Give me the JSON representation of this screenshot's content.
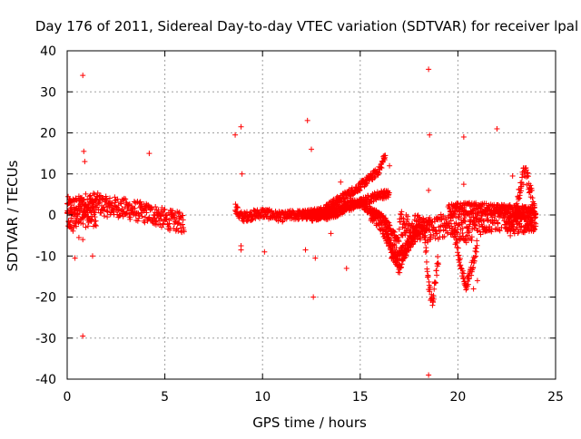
{
  "chart_data": {
    "type": "scatter",
    "title": "Day 176 of 2011, Sidereal Day-to-day VTEC variation (SDTVAR) for receiver lpal",
    "xlabel": "GPS time / hours",
    "ylabel": "SDTVAR / TECUs",
    "xlim": [
      0,
      25
    ],
    "ylim": [
      -40,
      40
    ],
    "xticks": [
      0,
      5,
      10,
      15,
      20,
      25
    ],
    "yticks": [
      -40,
      -30,
      -20,
      -10,
      0,
      10,
      20,
      30,
      40
    ],
    "grid": true,
    "marker": "+",
    "color": "#ff0000",
    "series": [
      {
        "name": "lpal",
        "dense_tracks": [
          {
            "x": [
              0.0,
              0.5,
              1.0,
              1.5,
              2.0,
              2.5,
              3.0,
              3.5,
              4.0,
              4.5,
              5.0,
              5.5,
              6.0
            ],
            "y": [
              2,
              2,
              3,
              3,
              2,
              2,
              1.5,
              1,
              0.5,
              0,
              -1,
              -1.5,
              -2
            ],
            "spread": 2.5
          },
          {
            "x": [
              0.0,
              0.3,
              0.6,
              0.9,
              1.2,
              1.5
            ],
            "y": [
              0,
              -1,
              1,
              0,
              -1,
              0
            ],
            "spread": 3
          },
          {
            "x": [
              8.6,
              8.8,
              9.0,
              9.5,
              10.0,
              10.5,
              11.0,
              11.5,
              12.0,
              12.5,
              13.0
            ],
            "y": [
              2,
              0,
              -0.5,
              0,
              0.5,
              0,
              -0.5,
              0,
              0,
              0,
              0
            ],
            "spread": 1.2
          },
          {
            "x": [
              12.0,
              13.0,
              14.0,
              15.0,
              16.0,
              16.3
            ],
            "y": [
              0,
              1,
              4,
              7,
              11,
              15
            ],
            "spread": 1
          },
          {
            "x": [
              12.5,
              13.5,
              14.5,
              15.5,
              16.0,
              16.5
            ],
            "y": [
              -0.5,
              0,
              2,
              4,
              5,
              5
            ],
            "spread": 1
          },
          {
            "x": [
              13.0,
              14.0,
              15.0,
              15.5,
              16.0,
              16.5,
              17.0
            ],
            "y": [
              0,
              2,
              3,
              1,
              0,
              -3,
              -7
            ],
            "spread": 1
          },
          {
            "x": [
              16.3,
              16.6,
              17.0,
              17.4,
              17.8,
              18.2,
              18.6
            ],
            "y": [
              -3,
              -9,
              -13,
              -8,
              -4,
              -3,
              -2
            ],
            "spread": 1.5
          },
          {
            "x": [
              15.5,
              16.0,
              16.5,
              17.0,
              17.5,
              18.0
            ],
            "y": [
              0,
              -2,
              -7,
              -10,
              -7,
              -4
            ],
            "spread": 1.5
          },
          {
            "x": [
              17.0,
              18.0,
              18.5,
              19.0,
              19.5,
              20.0,
              20.5,
              21.0,
              22.0,
              23.0,
              24.0
            ],
            "y": [
              -2,
              -3,
              -4,
              -3,
              -2,
              -3,
              -4,
              -2,
              -1,
              -1,
              -1
            ],
            "spread": 3
          },
          {
            "x": [
              18.3,
              18.5,
              18.7,
              19.0
            ],
            "y": [
              -5,
              -17,
              -22,
              -10
            ],
            "spread": 1.5
          },
          {
            "x": [
              19.8,
              20.0,
              20.2,
              20.4,
              20.6,
              20.8,
              21.0
            ],
            "y": [
              -4,
              -9,
              -14,
              -17,
              -15,
              -11,
              -7
            ],
            "spread": 1.5
          },
          {
            "x": [
              19.5,
              20.0,
              21.0,
              22.0,
              23.0,
              24.0
            ],
            "y": [
              1,
              1.5,
              1.5,
              1,
              1,
              0.5
            ],
            "spread": 1.5
          },
          {
            "x": [
              23.0,
              23.2,
              23.4,
              23.6,
              23.8,
              24.0
            ],
            "y": [
              2,
              6,
              11,
              8,
              4,
              0
            ],
            "spread": 2
          },
          {
            "x": [
              22.5,
              23.0,
              23.5,
              24.0
            ],
            "y": [
              -3,
              -2,
              -2,
              -1
            ],
            "spread": 2.5
          }
        ],
        "outliers": [
          [
            0.8,
            34
          ],
          [
            0.85,
            15.5
          ],
          [
            0.9,
            13
          ],
          [
            0.8,
            -29.5
          ],
          [
            0.4,
            -10.5
          ],
          [
            1.3,
            -10
          ],
          [
            0.6,
            -5.5
          ],
          [
            0.8,
            -6
          ],
          [
            4.2,
            15
          ],
          [
            8.6,
            19.5
          ],
          [
            8.9,
            21.5
          ],
          [
            8.95,
            10
          ],
          [
            8.9,
            -7.5
          ],
          [
            8.9,
            -8.5
          ],
          [
            10.1,
            -9
          ],
          [
            12.3,
            23
          ],
          [
            12.5,
            16
          ],
          [
            12.6,
            -20
          ],
          [
            12.7,
            -10.5
          ],
          [
            12.2,
            -8.5
          ],
          [
            14.3,
            -13
          ],
          [
            13.5,
            -4.5
          ],
          [
            18.5,
            35.5
          ],
          [
            18.55,
            19.5
          ],
          [
            18.5,
            -39
          ],
          [
            18.5,
            6
          ],
          [
            20.3,
            19
          ],
          [
            20.3,
            7.5
          ],
          [
            22.0,
            21
          ],
          [
            22.8,
            9.5
          ],
          [
            14.0,
            8
          ],
          [
            16.5,
            12
          ],
          [
            19.0,
            -12
          ],
          [
            21.0,
            -16
          ],
          [
            20.8,
            -18
          ]
        ]
      }
    ]
  }
}
